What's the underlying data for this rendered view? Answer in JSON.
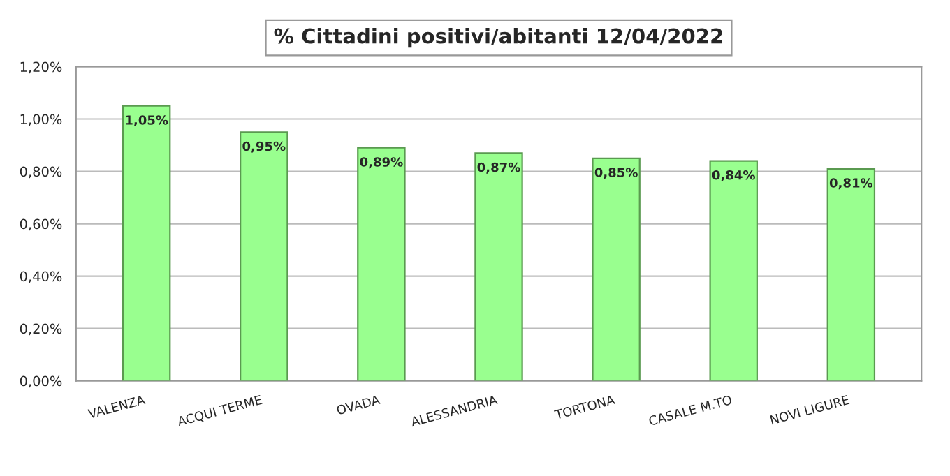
{
  "chart_data": {
    "type": "bar",
    "title": "% Cittadini positivi/abitanti 12/04/2022",
    "categories": [
      "VALENZA",
      "ACQUI TERME",
      "OVADA",
      "ALESSANDRIA",
      "TORTONA",
      "CASALE M.TO",
      "NOVI LIGURE"
    ],
    "values": [
      1.05,
      0.95,
      0.89,
      0.87,
      0.85,
      0.84,
      0.81
    ],
    "value_labels": [
      "1,05%",
      "0,95%",
      "0,89%",
      "0,87%",
      "0,85%",
      "0,84%",
      "0,81%"
    ],
    "color": "#99ff8f",
    "ylim": [
      0,
      1.2
    ],
    "yticks": [
      {
        "value": 0,
        "label": "0,00%"
      },
      {
        "value": 0.2,
        "label": "0,20%"
      },
      {
        "value": 0.4,
        "label": "0,40%"
      },
      {
        "value": 0.6,
        "label": "0,60%"
      },
      {
        "value": 0.8,
        "label": "0,80%"
      },
      {
        "value": 1.0,
        "label": "1,00%"
      },
      {
        "value": 1.2,
        "label": "1,20%"
      }
    ],
    "grid": "y"
  }
}
